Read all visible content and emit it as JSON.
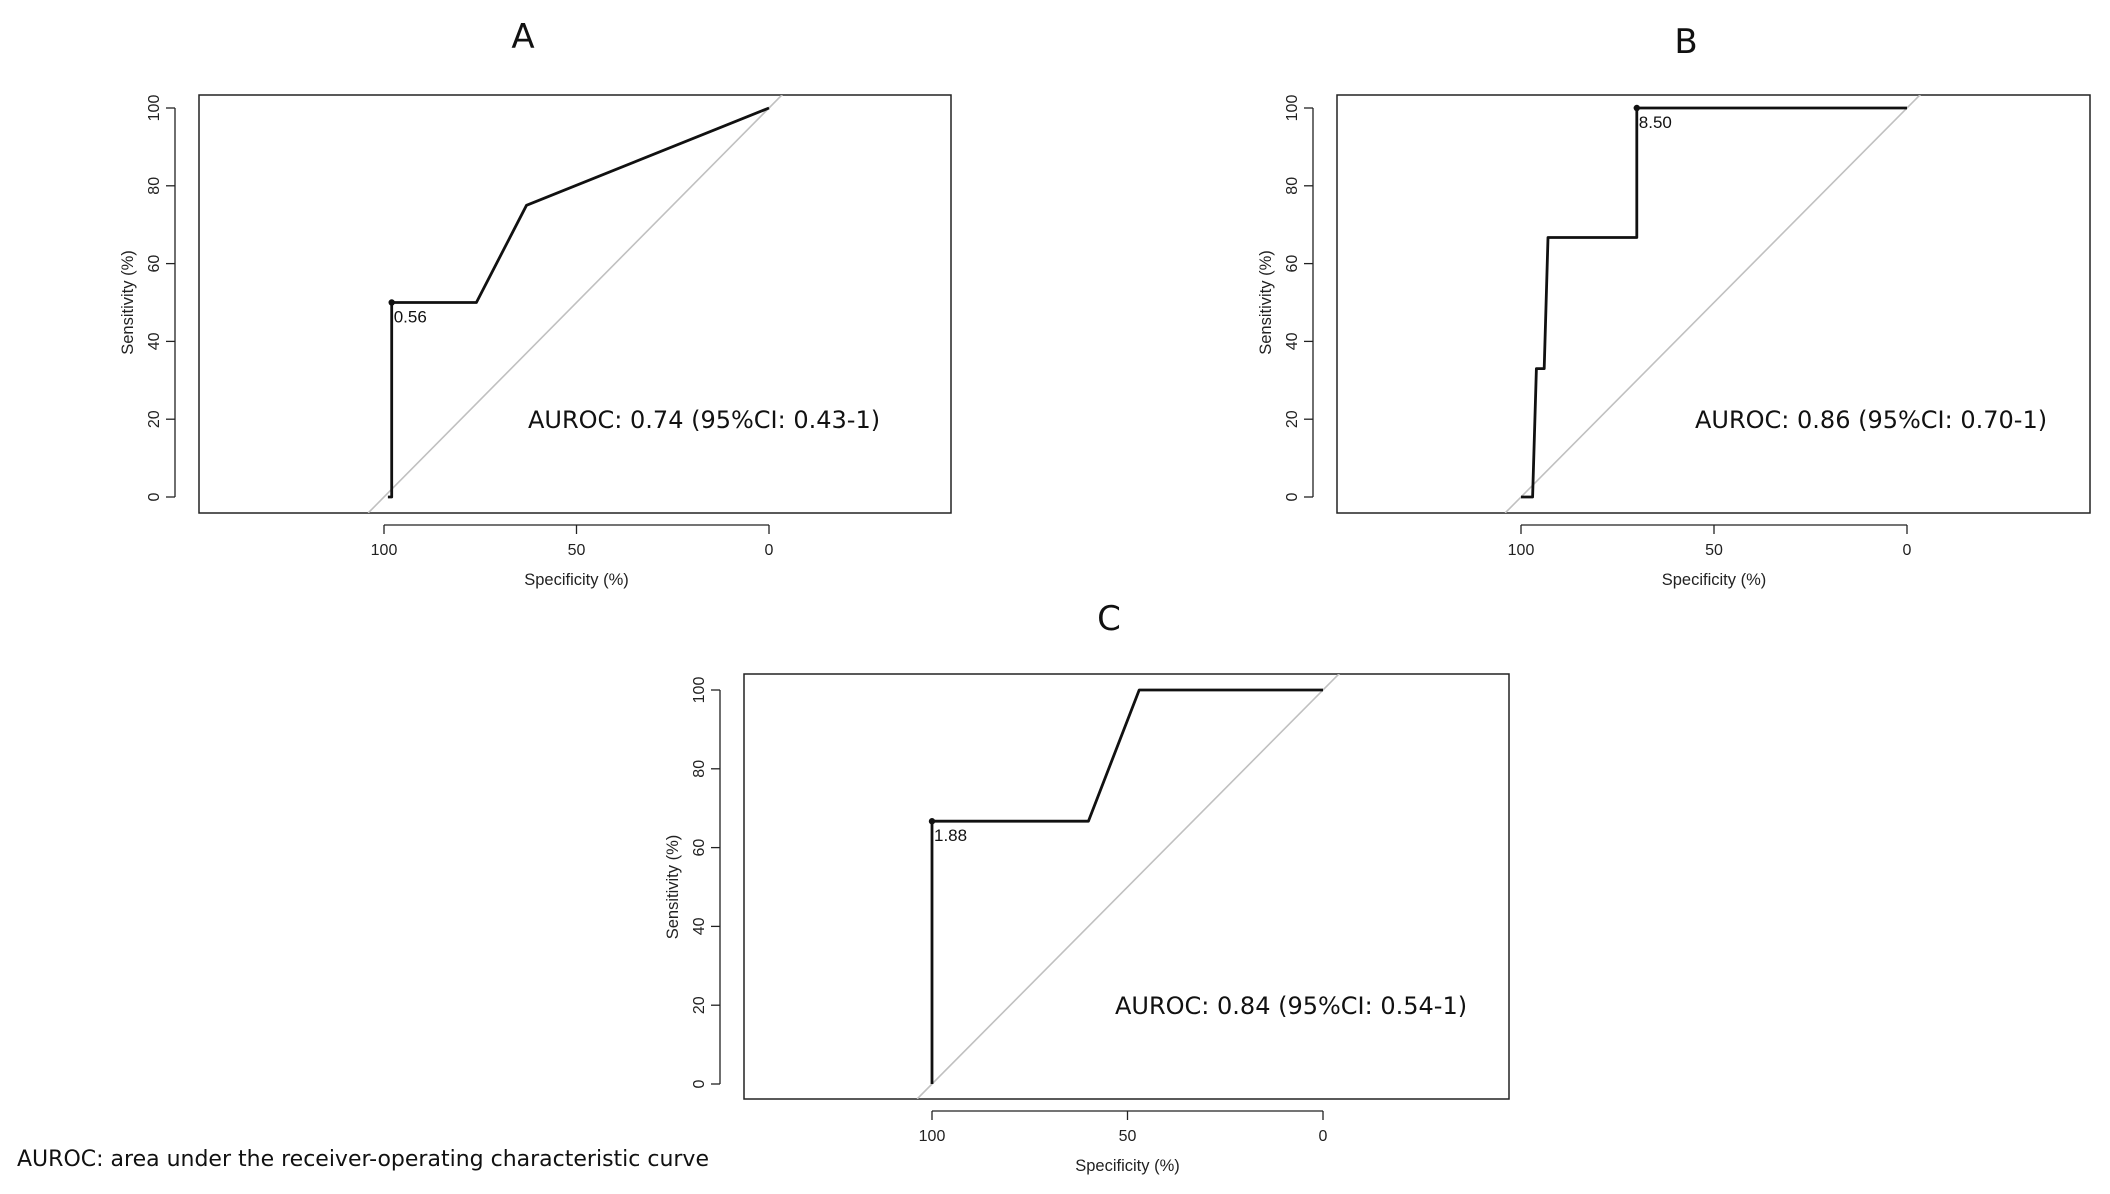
{
  "chart_data": [
    {
      "type": "line",
      "panel_label": "A",
      "xlabel": "Specificity (%)",
      "ylabel": "Sensitivity (%)",
      "xlim": [
        100,
        0
      ],
      "ylim": [
        0,
        100
      ],
      "x_ticks": [
        100,
        50,
        0
      ],
      "y_ticks": [
        0,
        20,
        40,
        60,
        80,
        100
      ],
      "series": [
        {
          "name": "ROC",
          "specificity": [
            99,
            99,
            98,
            98,
            76,
            63,
            0
          ],
          "sensitivity": [
            0,
            0,
            0,
            50,
            50,
            75,
            100
          ]
        }
      ],
      "reference_line": "diagonal",
      "threshold": {
        "label": "0.56",
        "specificity": 98,
        "sensitivity": 50
      },
      "annotation": "AUROC: 0.74 (95%CI: 0.43-1)",
      "grid": false
    },
    {
      "type": "line",
      "panel_label": "B",
      "xlabel": "Specificity (%)",
      "ylabel": "Sensitivity (%)",
      "xlim": [
        100,
        0
      ],
      "ylim": [
        0,
        100
      ],
      "x_ticks": [
        100,
        50,
        0
      ],
      "y_ticks": [
        0,
        20,
        40,
        60,
        80,
        100
      ],
      "series": [
        {
          "name": "ROC",
          "specificity": [
            100,
            97,
            96,
            96,
            94,
            94,
            93,
            93,
            70,
            70,
            0
          ],
          "sensitivity": [
            0,
            0,
            33,
            33,
            33,
            33,
            66.7,
            66.7,
            66.7,
            100,
            100
          ]
        }
      ],
      "reference_line": "diagonal",
      "threshold": {
        "label": "8.50",
        "specificity": 70,
        "sensitivity": 100
      },
      "annotation": "AUROC: 0.86 (95%CI: 0.70-1)",
      "grid": false
    },
    {
      "type": "line",
      "panel_label": "C",
      "xlabel": "Specificity (%)",
      "ylabel": "Sensitivity (%)",
      "xlim": [
        100,
        0
      ],
      "ylim": [
        0,
        100
      ],
      "x_ticks": [
        100,
        50,
        0
      ],
      "y_ticks": [
        0,
        20,
        40,
        60,
        80,
        100
      ],
      "series": [
        {
          "name": "ROC",
          "specificity": [
            100,
            100,
            60,
            47,
            0
          ],
          "sensitivity": [
            0,
            66.7,
            66.7,
            100,
            100
          ]
        }
      ],
      "reference_line": "diagonal",
      "threshold": {
        "label": "1.88",
        "specificity": 100,
        "sensitivity": 66.7
      },
      "annotation": "AUROC: 0.84 (95%CI: 0.54-1)",
      "grid": false
    }
  ],
  "footnote": "AUROC: area under the receiver-operating characteristic curve",
  "colors": {
    "curve": "#111111",
    "diagonal": "#c0c0c0",
    "frame": "#222222"
  }
}
